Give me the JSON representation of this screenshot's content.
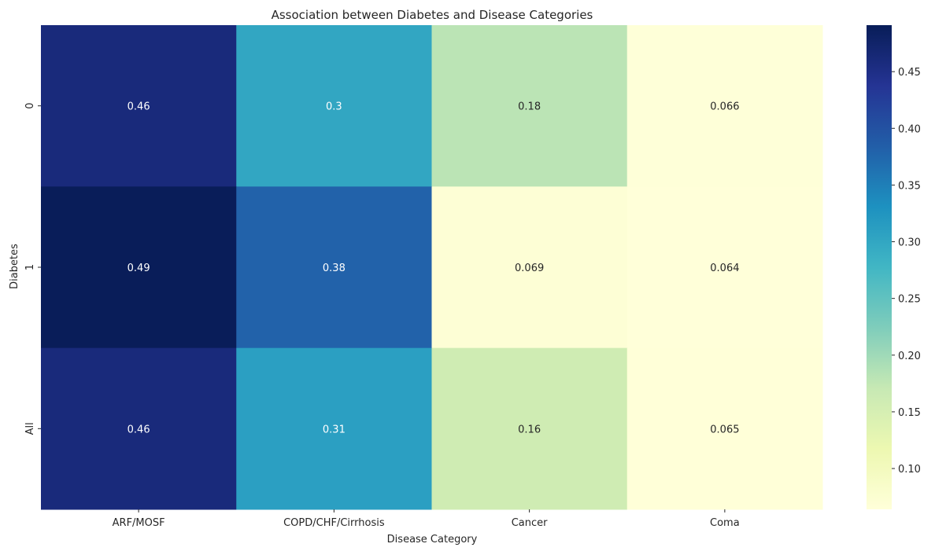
{
  "chart_data": {
    "type": "heatmap",
    "title": "Association between Diabetes and Disease Categories",
    "xlabel": "Disease Category",
    "ylabel": "Diabetes",
    "x_categories": [
      "ARF/MOSF",
      "COPD/CHF/Cirrhosis",
      "Cancer",
      "Coma"
    ],
    "y_categories": [
      "0",
      "1",
      "All"
    ],
    "values": [
      [
        0.46,
        0.3,
        0.18,
        0.066
      ],
      [
        0.49,
        0.38,
        0.069,
        0.064
      ],
      [
        0.46,
        0.31,
        0.16,
        0.065
      ]
    ],
    "value_labels": [
      [
        "0.46",
        "0.3",
        "0.18",
        "0.066"
      ],
      [
        "0.49",
        "0.38",
        "0.069",
        "0.064"
      ],
      [
        "0.46",
        "0.31",
        "0.16",
        "0.065"
      ]
    ],
    "colorbar": {
      "colormap": "YlGnBu",
      "min": 0.064,
      "max": 0.491,
      "ticks": [
        0.1,
        0.15,
        0.2,
        0.25,
        0.3,
        0.35,
        0.4,
        0.45
      ],
      "tick_labels": [
        "0.10",
        "0.15",
        "0.20",
        "0.25",
        "0.30",
        "0.35",
        "0.40",
        "0.45"
      ]
    }
  }
}
